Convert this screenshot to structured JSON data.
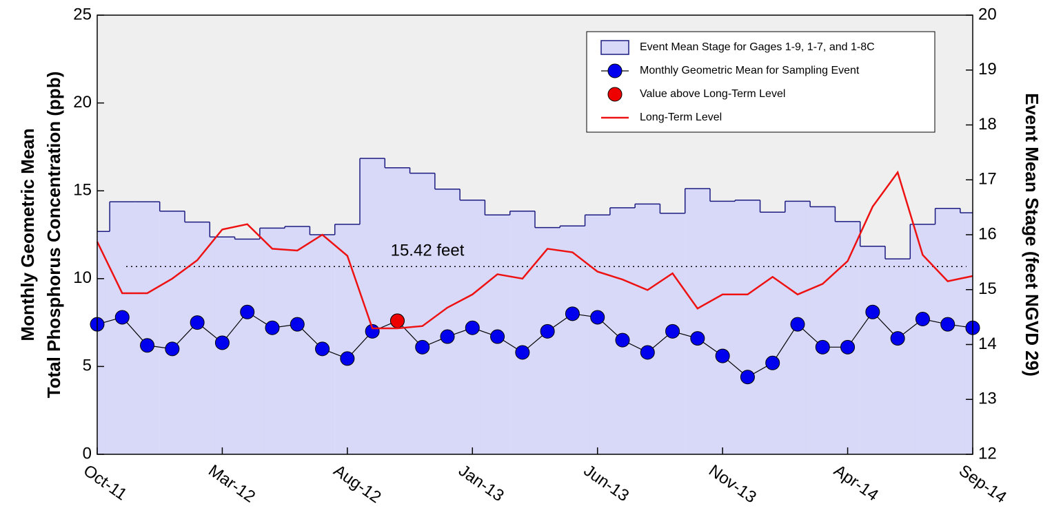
{
  "chart_data": {
    "type": "line",
    "ylabel": [
      "Monthly Geometric Mean",
      "Total Phosphorus Concentration (ppb)"
    ],
    "y2label": "Event Mean Stage (feet NGVD 29)",
    "x": [
      "2011-10",
      "2011-11",
      "2011-12",
      "2012-01",
      "2012-02",
      "2012-03",
      "2012-04",
      "2012-05",
      "2012-06",
      "2012-07",
      "2012-08",
      "2012-09",
      "2012-10",
      "2012-11",
      "2012-12",
      "2013-01",
      "2013-02",
      "2013-03",
      "2013-04",
      "2013-05",
      "2013-06",
      "2013-07",
      "2013-08",
      "2013-09",
      "2013-10",
      "2013-11",
      "2013-12",
      "2014-01",
      "2014-02",
      "2014-03",
      "2014-04",
      "2014-05",
      "2014-06",
      "2014-07",
      "2014-08",
      "2014-09"
    ],
    "xlim": [
      "2011-10",
      "2014-09"
    ],
    "xticks": [
      {
        "value": "2011-10",
        "label": "Oct-11"
      },
      {
        "value": "2012-03",
        "label": "Mar-12"
      },
      {
        "value": "2012-08",
        "label": "Aug-12"
      },
      {
        "value": "2013-01",
        "label": "Jan-13"
      },
      {
        "value": "2013-06",
        "label": "Jun-13"
      },
      {
        "value": "2013-11",
        "label": "Nov-13"
      },
      {
        "value": "2014-04",
        "label": "Apr-14"
      },
      {
        "value": "2014-09",
        "label": "Sep-14"
      }
    ],
    "ylim": [
      0,
      25
    ],
    "yticks": [
      0,
      5,
      10,
      15,
      20,
      25
    ],
    "y2lim": [
      12,
      20
    ],
    "y2ticks": [
      12,
      13,
      14,
      15,
      16,
      17,
      18,
      19,
      20
    ],
    "legend": "upper right",
    "series": [
      {
        "name": "Event Mean Stage for Gages  1-9, 1-7, and 1-8C",
        "axis": "y2",
        "style": "step-area",
        "color": "#d8d8f8",
        "values": [
          16.06,
          16.6,
          16.6,
          16.43,
          16.23,
          15.96,
          15.92,
          16.12,
          16.15,
          16.0,
          16.19,
          17.39,
          17.22,
          17.12,
          16.83,
          16.63,
          16.36,
          16.43,
          16.13,
          16.16,
          16.36,
          16.49,
          16.56,
          16.39,
          16.84,
          16.61,
          16.63,
          16.41,
          16.61,
          16.51,
          16.24,
          15.79,
          15.56,
          16.19,
          16.48,
          16.4
        ]
      },
      {
        "name": "Monthly Geometric Mean for Sampling Event",
        "style": "line-marker",
        "color": "#0000ee",
        "values": [
          7.4,
          7.8,
          6.2,
          6.0,
          7.5,
          6.35,
          8.1,
          7.2,
          7.4,
          6.0,
          5.45,
          7.0,
          7.6,
          6.1,
          6.7,
          7.2,
          6.7,
          5.8,
          7.0,
          8.0,
          7.8,
          6.5,
          5.8,
          7.0,
          6.6,
          5.6,
          4.4,
          5.2,
          7.4,
          6.1,
          6.1,
          8.1,
          6.6,
          7.7,
          7.4,
          7.2
        ]
      },
      {
        "name": "Value above Long-Term Level",
        "style": "marker",
        "color": "#ee0000",
        "x": [
          "2012-10"
        ],
        "values": [
          7.6
        ]
      },
      {
        "name": "Long-Term Level",
        "style": "line",
        "color": "#ee1111",
        "values": [
          12.1,
          9.17,
          9.17,
          10.0,
          11.05,
          12.8,
          13.1,
          11.7,
          11.6,
          12.5,
          11.3,
          7.17,
          7.17,
          7.3,
          8.35,
          9.1,
          10.25,
          10.0,
          11.7,
          11.5,
          10.4,
          9.95,
          9.35,
          10.3,
          8.3,
          9.1,
          9.1,
          10.1,
          9.1,
          9.7,
          11.0,
          14.1,
          16.05,
          11.35,
          9.85,
          10.15
        ]
      }
    ],
    "reference_line": {
      "value": 15.42,
      "axis": "y2",
      "label": "15.42 feet"
    }
  }
}
